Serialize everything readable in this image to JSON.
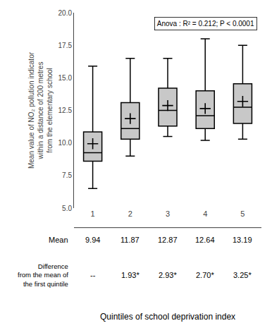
{
  "chart_data": {
    "type": "box",
    "categories": [
      "1",
      "2",
      "3",
      "4",
      "5"
    ],
    "series": [
      {
        "type": "box",
        "color": "#c8c8c8",
        "q1": [
          8.6,
          10.3,
          11.3,
          11.1,
          11.5
        ],
        "median": [
          9.25,
          11.1,
          12.5,
          12.1,
          12.75
        ],
        "q3": [
          10.85,
          13.1,
          14.2,
          14.0,
          14.55
        ],
        "whisker_low": [
          6.5,
          9.0,
          10.5,
          10.2,
          10.3
        ],
        "whisker_high": [
          15.9,
          16.5,
          16.5,
          18.0,
          17.5
        ]
      },
      {
        "type": "scatter",
        "marker": "+",
        "color": "#000000",
        "values": [
          9.94,
          11.87,
          12.87,
          12.64,
          13.19
        ]
      }
    ],
    "ylim": [
      5.0,
      20.0
    ],
    "yticks": [
      {
        "value": 5.0,
        "label": "5.0"
      },
      7.5,
      {
        "value": 10.0,
        "label": "10.0"
      },
      12.5,
      {
        "value": 15.0,
        "label": "15.0"
      },
      17.5,
      {
        "value": 20.0,
        "label": "20.0"
      }
    ],
    "ylabel": "Mean value of NO₂ pollution indicator\nwithin a distance of 200 metres\nfrom the elementary school",
    "xlabel": "Quintiles of school deprivation index",
    "annotation": "Anova : R² = 0.212; P < 0.0001",
    "grid": false,
    "table": [
      {
        "label": "Mean",
        "values": [
          9.94,
          11.87,
          12.87,
          12.64,
          13.19
        ]
      },
      {
        "label": "Difference\nfrom the mean of\nthe first quintile",
        "values": [
          "--",
          "1.93*",
          "2.93*",
          "2.70*",
          "3.25*"
        ]
      }
    ]
  }
}
